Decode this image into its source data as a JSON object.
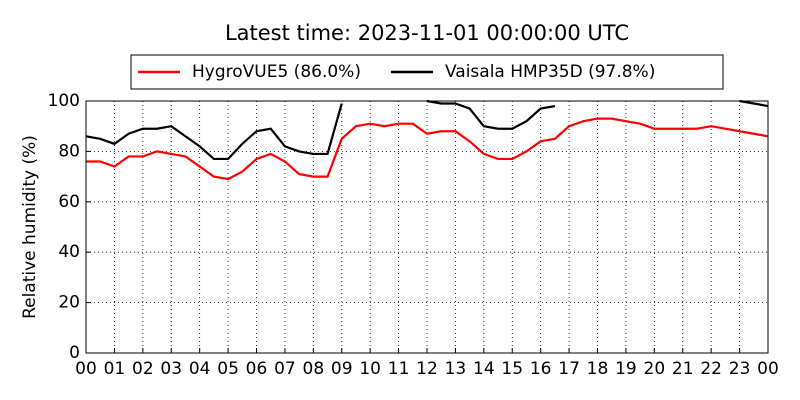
{
  "chart_data": {
    "type": "line",
    "title": "Latest time: 2023-11-01 00:00:00 UTC",
    "ylabel": "Relative humidity (%)",
    "x": [
      0,
      0.5,
      1,
      1.5,
      2,
      2.5,
      3,
      3.5,
      4,
      4.5,
      5,
      5.5,
      6,
      6.5,
      7,
      7.5,
      8,
      8.5,
      9,
      9.5,
      10,
      10.5,
      11,
      11.5,
      12,
      12.5,
      13,
      13.5,
      14,
      14.5,
      15,
      15.5,
      16,
      16.5,
      17,
      17.5,
      18,
      18.5,
      19,
      19.5,
      20,
      20.5,
      21,
      21.5,
      22,
      22.5,
      23,
      23.5,
      24
    ],
    "series": [
      {
        "name": "HygroVUE5 (86.0%)",
        "color": "#ff0000",
        "values": [
          76,
          76,
          74,
          78,
          78,
          80,
          79,
          78,
          74,
          70,
          69,
          72,
          77,
          79,
          76,
          71,
          70,
          70,
          85,
          90,
          91,
          90,
          91,
          91,
          87,
          88,
          88,
          84,
          79,
          77,
          77,
          80,
          84,
          85,
          90,
          92,
          93,
          93,
          92,
          91,
          89,
          89,
          89,
          89,
          90,
          89,
          88,
          87,
          86
        ]
      },
      {
        "name": "Vaisala HMP35D (97.8%)",
        "color": "#000000",
        "values": [
          86,
          85,
          83,
          87,
          89,
          89,
          90,
          86,
          82,
          77,
          77,
          83,
          88,
          89,
          82,
          80,
          79,
          79,
          99,
          null,
          null,
          null,
          null,
          null,
          100,
          99,
          99,
          97,
          90,
          89,
          89,
          92,
          97,
          98,
          null,
          null,
          null,
          null,
          null,
          null,
          null,
          null,
          null,
          null,
          null,
          null,
          100,
          99,
          98
        ]
      }
    ],
    "xlim": [
      0,
      24
    ],
    "xticks": [
      {
        "value": 0,
        "label": "00"
      },
      {
        "value": 1,
        "label": "01"
      },
      {
        "value": 2,
        "label": "02"
      },
      {
        "value": 3,
        "label": "03"
      },
      {
        "value": 4,
        "label": "04"
      },
      {
        "value": 5,
        "label": "05"
      },
      {
        "value": 6,
        "label": "06"
      },
      {
        "value": 7,
        "label": "07"
      },
      {
        "value": 8,
        "label": "08"
      },
      {
        "value": 9,
        "label": "09"
      },
      {
        "value": 10,
        "label": "10"
      },
      {
        "value": 11,
        "label": "11"
      },
      {
        "value": 12,
        "label": "12"
      },
      {
        "value": 13,
        "label": "13"
      },
      {
        "value": 14,
        "label": "14"
      },
      {
        "value": 15,
        "label": "15"
      },
      {
        "value": 16,
        "label": "16"
      },
      {
        "value": 17,
        "label": "17"
      },
      {
        "value": 18,
        "label": "18"
      },
      {
        "value": 19,
        "label": "19"
      },
      {
        "value": 20,
        "label": "20"
      },
      {
        "value": 21,
        "label": "21"
      },
      {
        "value": 22,
        "label": "22"
      },
      {
        "value": 23,
        "label": "23"
      },
      {
        "value": 24,
        "label": "00"
      }
    ],
    "ylim": [
      0,
      100
    ],
    "yticks": [
      0,
      20,
      40,
      60,
      80,
      100
    ],
    "grid": true,
    "legend": "upper center"
  }
}
